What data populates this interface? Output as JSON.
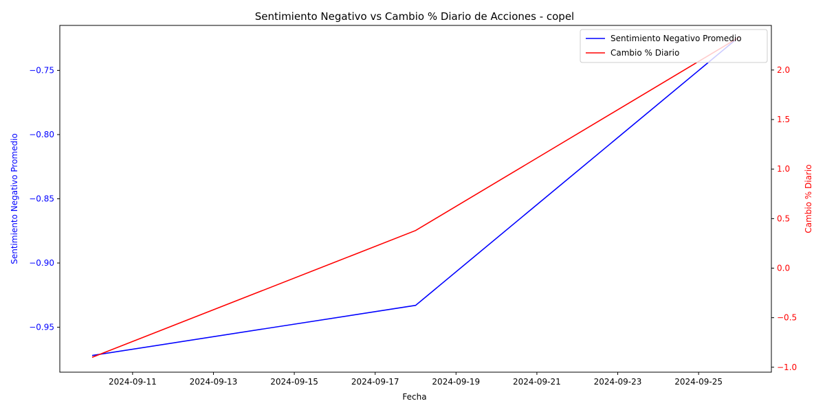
{
  "chart_data": {
    "type": "line",
    "title": "Sentimiento Negativo vs Cambio % Diario de Acciones - copel",
    "xlabel": "Fecha",
    "x": [
      "2024-09-10",
      "2024-09-18",
      "2024-09-26"
    ],
    "x_ticks": [
      "2024-09-11",
      "2024-09-13",
      "2024-09-15",
      "2024-09-17",
      "2024-09-19",
      "2024-09-21",
      "2024-09-23",
      "2024-09-25"
    ],
    "xlim": [
      "2024-09-09.2",
      "2024-09-26.8"
    ],
    "y_left": {
      "label": "Sentimiento Negativo Promedio",
      "color": "#0000ff",
      "ylim": [
        -0.985,
        -0.715
      ],
      "ticks": [
        -0.95,
        -0.9,
        -0.85,
        -0.8,
        -0.75
      ],
      "tick_labels": [
        "−0.95",
        "−0.90",
        "−0.85",
        "−0.80",
        "−0.75"
      ]
    },
    "y_right": {
      "label": "Cambio % Diario",
      "color": "#ff0000",
      "ylim": [
        -1.05,
        2.45
      ],
      "ticks": [
        -1.0,
        -0.5,
        0.0,
        0.5,
        1.0,
        1.5,
        2.0
      ],
      "tick_labels": [
        "−1.0",
        "−0.5",
        "0.0",
        "0.5",
        "1.0",
        "1.5",
        "2.0"
      ]
    },
    "series": [
      {
        "name": "Sentimiento Negativo Promedio",
        "axis": "left",
        "color": "#0000ff",
        "values": [
          -0.972,
          -0.933,
          -0.724
        ]
      },
      {
        "name": "Cambio % Diario",
        "axis": "right",
        "color": "#ff0000",
        "values": [
          -0.9,
          0.38,
          2.33
        ]
      }
    ],
    "legend_position": "top-right",
    "grid": false
  }
}
